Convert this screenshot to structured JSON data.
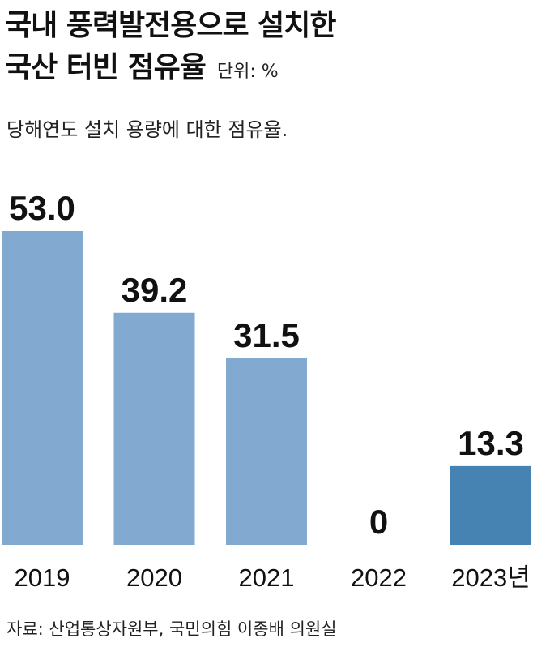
{
  "header": {
    "title_line1": "국내 풍력발전용으로 설치한",
    "title_line2": "국산 터빈 점유율",
    "unit": "단위: %",
    "subtitle": "당해연도 설치 용량에 대한 점유율."
  },
  "footer": {
    "source": "자료: 산업통상자원부, 국민의힘 이종배 의원실"
  },
  "colors": {
    "bar": "#82a9cf",
    "bar_highlight": "#4683b2",
    "text": "#111111"
  },
  "chart_data": {
    "type": "bar",
    "title": "국내 풍력발전용으로 설치한 국산 터빈 점유율",
    "categories": [
      "2019",
      "2020",
      "2021",
      "2022",
      "2023년"
    ],
    "values": [
      53.0,
      39.2,
      31.5,
      0,
      13.3
    ],
    "value_labels": [
      "53.0",
      "39.2",
      "31.5",
      "0",
      "13.3"
    ],
    "highlight_index": 4,
    "ylim": [
      0,
      53.0
    ],
    "grid": false,
    "legend": "none"
  }
}
